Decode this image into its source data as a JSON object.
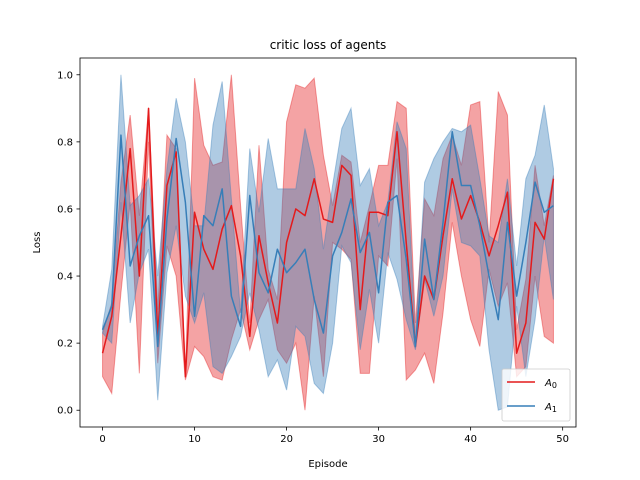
{
  "chart_data": {
    "type": "line",
    "title": "critic loss of agents",
    "xlabel": "Episode",
    "ylabel": "Loss",
    "xlim": [
      -2.45,
      51.45
    ],
    "ylim": [
      -0.05,
      1.05
    ],
    "xticks": [
      0,
      10,
      20,
      30,
      40,
      50
    ],
    "yticks": [
      0.0,
      0.2,
      0.4,
      0.6,
      0.8,
      1.0
    ],
    "xtick_labels": [
      "0",
      "10",
      "20",
      "30",
      "40",
      "50"
    ],
    "ytick_labels": [
      "0.0",
      "0.2",
      "0.4",
      "0.6",
      "0.8",
      "1.0"
    ],
    "grid": false,
    "legend_position": "lower-right",
    "x": [
      0,
      1,
      2,
      3,
      4,
      5,
      6,
      7,
      8,
      9,
      10,
      11,
      12,
      13,
      14,
      15,
      16,
      17,
      18,
      19,
      20,
      21,
      22,
      23,
      24,
      25,
      26,
      27,
      28,
      29,
      30,
      31,
      32,
      33,
      34,
      35,
      36,
      37,
      38,
      39,
      40,
      41,
      42,
      43,
      44,
      45,
      46,
      47,
      48,
      49
    ],
    "series": [
      {
        "name": "A",
        "subscript": "0",
        "color": "#e41a1c",
        "values": [
          0.17,
          0.28,
          0.52,
          0.78,
          0.4,
          0.9,
          0.22,
          0.67,
          0.77,
          0.1,
          0.59,
          0.48,
          0.42,
          0.54,
          0.61,
          0.46,
          0.22,
          0.52,
          0.38,
          0.26,
          0.5,
          0.6,
          0.58,
          0.69,
          0.57,
          0.56,
          0.73,
          0.7,
          0.3,
          0.59,
          0.59,
          0.58,
          0.83,
          0.5,
          0.19,
          0.4,
          0.33,
          0.52,
          0.69,
          0.57,
          0.64,
          0.56,
          0.46,
          0.55,
          0.65,
          0.17,
          0.26,
          0.56,
          0.51,
          0.69
        ],
        "lower": [
          0.1,
          0.05,
          0.35,
          0.62,
          0.11,
          0.8,
          0.14,
          0.49,
          0.4,
          0.09,
          0.19,
          0.16,
          0.1,
          0.09,
          0.21,
          0.3,
          0.18,
          0.27,
          0.33,
          0.18,
          0.14,
          0.2,
          0.0,
          0.34,
          0.1,
          0.5,
          0.48,
          0.45,
          0.11,
          0.11,
          0.46,
          0.43,
          0.75,
          0.09,
          0.12,
          0.17,
          0.08,
          0.29,
          0.56,
          0.4,
          0.27,
          0.19,
          0.42,
          0.31,
          0.38,
          0.1,
          0.13,
          0.4,
          0.22,
          0.2
        ],
        "upper": [
          0.23,
          0.32,
          0.68,
          0.88,
          0.58,
          0.9,
          0.3,
          0.82,
          0.78,
          0.11,
          0.99,
          0.79,
          0.73,
          0.74,
          1.0,
          0.61,
          0.26,
          0.79,
          0.42,
          0.33,
          0.86,
          0.97,
          0.96,
          0.99,
          0.76,
          0.61,
          0.76,
          0.74,
          0.5,
          0.61,
          0.73,
          0.73,
          0.92,
          0.9,
          0.26,
          0.63,
          0.58,
          0.75,
          0.82,
          0.73,
          0.91,
          0.92,
          0.5,
          0.95,
          0.88,
          0.24,
          0.39,
          0.73,
          0.55,
          0.7
        ]
      },
      {
        "name": "A",
        "subscript": "1",
        "color": "#377eb8",
        "values": [
          0.24,
          0.31,
          0.82,
          0.43,
          0.52,
          0.58,
          0.19,
          0.57,
          0.81,
          0.62,
          0.28,
          0.58,
          0.55,
          0.66,
          0.34,
          0.25,
          0.64,
          0.41,
          0.35,
          0.48,
          0.41,
          0.44,
          0.48,
          0.33,
          0.23,
          0.46,
          0.53,
          0.63,
          0.47,
          0.53,
          0.35,
          0.62,
          0.64,
          0.45,
          0.19,
          0.51,
          0.33,
          0.56,
          0.83,
          0.67,
          0.67,
          0.55,
          0.4,
          0.27,
          0.56,
          0.34,
          0.5,
          0.68,
          0.59,
          0.61
        ],
        "lower": [
          0.23,
          0.2,
          0.62,
          0.26,
          0.41,
          0.48,
          0.03,
          0.41,
          0.55,
          0.34,
          0.26,
          0.35,
          0.13,
          0.11,
          0.16,
          0.22,
          0.35,
          0.24,
          0.1,
          0.15,
          0.06,
          0.25,
          0.22,
          0.08,
          0.05,
          0.2,
          0.49,
          0.44,
          0.18,
          0.36,
          0.2,
          0.47,
          0.39,
          0.27,
          0.18,
          0.39,
          0.28,
          0.4,
          0.66,
          0.5,
          0.49,
          0.46,
          0.18,
          0.0,
          0.01,
          0.31,
          0.1,
          0.27,
          0.52,
          0.33
        ],
        "upper": [
          0.25,
          0.42,
          1.0,
          0.61,
          0.64,
          0.69,
          0.4,
          0.72,
          0.93,
          0.8,
          0.55,
          0.55,
          0.85,
          0.98,
          0.63,
          0.29,
          0.78,
          0.59,
          0.81,
          0.66,
          0.66,
          0.66,
          0.84,
          0.72,
          0.48,
          0.67,
          0.84,
          0.9,
          0.67,
          0.72,
          0.55,
          0.62,
          0.86,
          0.78,
          0.21,
          0.68,
          0.75,
          0.8,
          0.84,
          0.83,
          0.85,
          0.69,
          0.52,
          0.5,
          0.69,
          0.43,
          0.69,
          0.76,
          0.91,
          0.72
        ]
      }
    ]
  }
}
